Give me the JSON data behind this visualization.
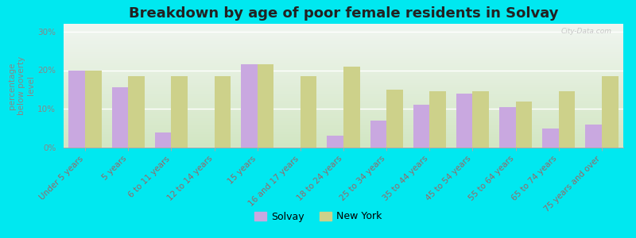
{
  "title": "Breakdown by age of poor female residents in Solvay",
  "ylabel": "percentage\nbelow poverty\nlevel",
  "categories": [
    "Under 5 years",
    "5 years",
    "6 to 11 years",
    "12 to 14 years",
    "15 years",
    "16 and 17 years",
    "18 to 24 years",
    "25 to 34 years",
    "35 to 44 years",
    "45 to 54 years",
    "55 to 64 years",
    "65 to 74 years",
    "75 years and over"
  ],
  "solvay_values": [
    20.0,
    15.5,
    4.0,
    0.0,
    21.5,
    0.0,
    3.0,
    7.0,
    11.0,
    14.0,
    10.5,
    5.0,
    6.0
  ],
  "newyork_values": [
    20.0,
    18.5,
    18.5,
    18.5,
    21.5,
    18.5,
    21.0,
    15.0,
    14.5,
    14.5,
    12.0,
    14.5,
    18.5
  ],
  "solvay_color": "#c9a8e0",
  "newyork_color": "#cdd18a",
  "background_color": "#00e8f0",
  "plot_bg_top": "#f0f5f0",
  "plot_bg_bottom": "#d8edcc",
  "yticks": [
    0,
    10,
    20,
    30
  ],
  "ytick_labels": [
    "0%",
    "10%",
    "20%",
    "30%"
  ],
  "ylim": [
    0,
    32
  ],
  "bar_width": 0.38,
  "title_fontsize": 13,
  "tick_fontsize": 7.5,
  "ylabel_fontsize": 7.5,
  "legend_labels": [
    "Solvay",
    "New York"
  ],
  "legend_marker_color_solvay": "#c9a8e0",
  "legend_marker_color_ny": "#cdd18a",
  "axis_label_color": "#996666",
  "ytick_color": "#888888",
  "watermark": "City-Data.com"
}
